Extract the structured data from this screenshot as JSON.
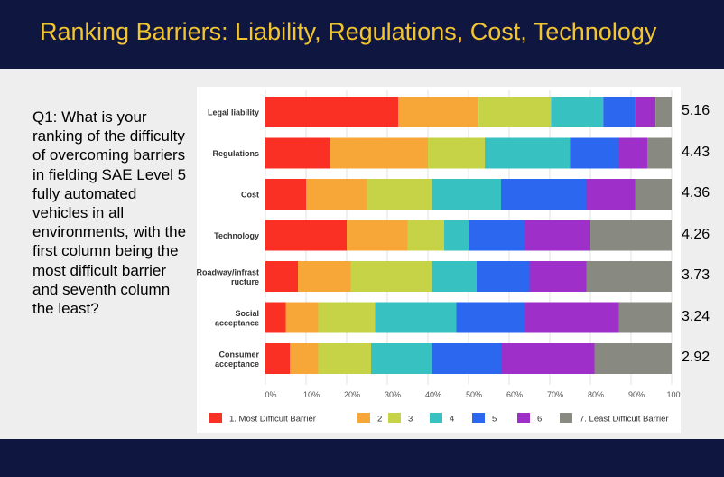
{
  "slide": {
    "title": "Ranking Barriers: Liability, Regulations, Cost, Technology",
    "question": "Q1: What is your ranking of the difficulty of overcoming barriers in fielding SAE Level 5 fully automated vehicles in all environments, with the first column being the most difficult barrier and seventh column the least?"
  },
  "colors": {
    "header_bg": "#0f1640",
    "title_text": "#f2c530",
    "series": [
      "#fb3025",
      "#f7a738",
      "#c6d346",
      "#37c1c1",
      "#2b67ef",
      "#9e2fc9",
      "#888a82"
    ]
  },
  "chart_data": {
    "type": "bar",
    "orientation": "horizontal",
    "stacked": "100%",
    "categories": [
      "Legal liability",
      "Regulations",
      "Cost",
      "Technology",
      "Roadway/infrastructure",
      "Social acceptance",
      "Consumer acceptance"
    ],
    "category_labels": [
      [
        "Legal liability"
      ],
      [
        "Regulations"
      ],
      [
        "Cost"
      ],
      [
        "Technology"
      ],
      [
        "Roadway/infrast",
        "ructure"
      ],
      [
        "Social",
        "acceptance"
      ],
      [
        "Consumer",
        "acceptance"
      ]
    ],
    "series": [
      {
        "name": "1. Most Difficult Barrier",
        "values": [
          33,
          16,
          10,
          20,
          8,
          5,
          6
        ]
      },
      {
        "name": "2",
        "values": [
          20,
          24,
          15,
          15,
          13,
          8,
          7
        ]
      },
      {
        "name": "3",
        "values": [
          18,
          14,
          16,
          9,
          20,
          14,
          13
        ]
      },
      {
        "name": "4",
        "values": [
          13,
          21,
          17,
          6,
          11,
          20,
          15
        ]
      },
      {
        "name": "5",
        "values": [
          8,
          12,
          21,
          14,
          13,
          17,
          17
        ]
      },
      {
        "name": "6",
        "values": [
          5,
          7,
          12,
          16,
          14,
          23,
          23
        ]
      },
      {
        "name": "7. Least Difficult Barrier",
        "values": [
          4,
          6,
          9,
          20,
          21,
          13,
          19
        ]
      }
    ],
    "scores": [
      "5.16",
      "4.43",
      "4.36",
      "4.26",
      "3.73",
      "3.24",
      "2.92"
    ],
    "x_ticks": [
      "0%",
      "10%",
      "20%",
      "30%",
      "40%",
      "50%",
      "60%",
      "70%",
      "80%",
      "90%",
      "100%"
    ],
    "xlim": [
      0,
      100
    ],
    "grid": true,
    "legend_position": "bottom"
  }
}
